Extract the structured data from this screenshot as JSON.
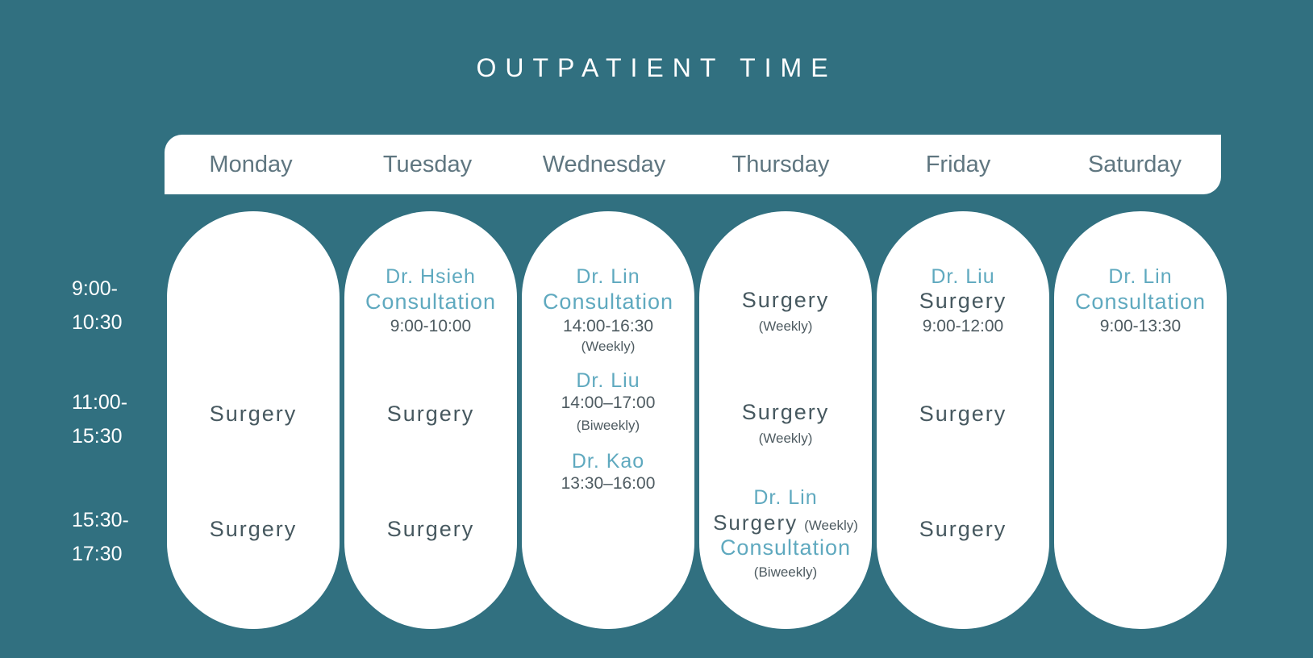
{
  "title": "OUTPATIENT TIME",
  "days": [
    "Monday",
    "Tuesday",
    "Wednesday",
    "Thursday",
    "Friday",
    "Saturday"
  ],
  "time_slots": [
    {
      "start": "9:00-",
      "end": "10:30"
    },
    {
      "start": "11:00-",
      "end": "15:30"
    },
    {
      "start": "15:30-",
      "end": "17:30"
    }
  ],
  "monday": {
    "slot2_activity": "Surgery",
    "slot3_activity": "Surgery"
  },
  "tuesday": {
    "slot1_doctor": "Dr. Hsieh",
    "slot1_activity": "Consultation",
    "slot1_hours": "9:00-10:00",
    "slot2_activity": "Surgery",
    "slot3_activity": "Surgery"
  },
  "wednesday": {
    "entry1_doctor": "Dr. Lin",
    "entry1_activity": "Consultation",
    "entry1_hours": "14:00-16:30",
    "entry1_note": "(Weekly)",
    "entry2_doctor": "Dr. Liu",
    "entry2_hours": "14:00–17:00",
    "entry2_note": "(Biweekly)",
    "entry3_doctor": "Dr. Kao",
    "entry3_hours": "13:30–16:00"
  },
  "thursday": {
    "slot1_activity": "Surgery",
    "slot1_note": "(Weekly)",
    "slot2_activity": "Surgery",
    "slot2_note": "(Weekly)",
    "slot3_doctor": "Dr. Lin",
    "slot3_activity1": "Surgery",
    "slot3_note1": "(Weekly)",
    "slot3_activity2": "Consultation",
    "slot3_note2": "(Biweekly)"
  },
  "friday": {
    "slot1_doctor": "Dr. Liu",
    "slot1_activity": "Surgery",
    "slot1_hours": "9:00-12:00",
    "slot2_activity": "Surgery",
    "slot3_activity": "Surgery"
  },
  "saturday": {
    "slot1_doctor": "Dr. Lin",
    "slot1_activity": "Consultation",
    "slot1_hours": "9:00-13:30"
  },
  "colors": {
    "background": "#317080",
    "card": "#ffffff",
    "doctor_accent": "#5fa9bf",
    "surgery_text": "#46585f",
    "day_text": "#5f7680"
  }
}
